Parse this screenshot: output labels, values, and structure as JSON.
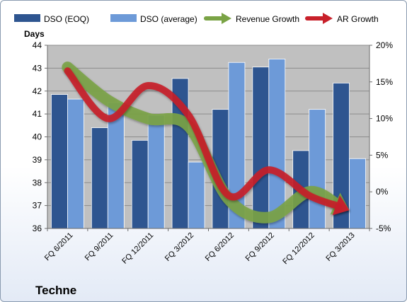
{
  "chart_data": {
    "type": "bar",
    "brand": "Techne",
    "ylabel": "Days",
    "categories": [
      "FQ 6/2011",
      "FQ 9/2011",
      "FQ 12/2011",
      "FQ 3/2012",
      "FQ 6/2012",
      "FQ 9/2012",
      "FQ 12/2012",
      "FQ 3/2013"
    ],
    "ylim": [
      36,
      44
    ],
    "yticks": [
      "36",
      "37",
      "38",
      "39",
      "40",
      "41",
      "42",
      "43",
      "44"
    ],
    "y2lim": [
      -5,
      20
    ],
    "y2ticks": [
      "-5%",
      "0%",
      "5%",
      "10%",
      "15%",
      "20%"
    ],
    "legend_position": "top",
    "grid": true,
    "plot_background": "#c0c0c0",
    "series": [
      {
        "name": "DSO (EOQ)",
        "kind": "bar",
        "axis": "left",
        "color": "#2e5590",
        "values": [
          41.85,
          40.4,
          39.85,
          42.55,
          41.2,
          43.05,
          39.4,
          42.35
        ]
      },
      {
        "name": "DSO (average)",
        "kind": "bar",
        "axis": "left",
        "color": "#6d9ad8",
        "values": [
          41.65,
          41.5,
          40.95,
          38.9,
          43.25,
          43.4,
          41.2,
          39.05
        ]
      },
      {
        "name": "Revenue Growth",
        "kind": "line",
        "axis": "right",
        "color": "#7aa345",
        "values": [
          17,
          12.5,
          10,
          9,
          -1,
          -3.5,
          0,
          -2.5
        ]
      },
      {
        "name": "AR Growth",
        "kind": "line",
        "axis": "right",
        "color": "#c8202a",
        "values": [
          16.5,
          10,
          14.5,
          10.5,
          -0.5,
          3,
          -0.5,
          -2.5
        ]
      }
    ]
  }
}
